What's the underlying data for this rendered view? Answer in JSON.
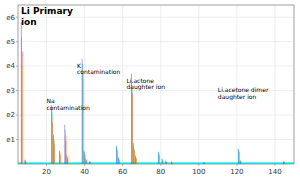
{
  "chart_data": {
    "type": "bar",
    "title": "Li Primary\nion",
    "x": [
      7,
      9,
      23,
      24,
      27,
      30,
      31,
      39,
      40,
      41,
      43,
      57,
      58,
      65,
      66,
      67,
      79,
      81,
      83,
      86,
      103,
      121,
      122,
      145
    ],
    "series": [
      {
        "color": "#0000cc",
        "values": [
          580000,
          18000,
          240000,
          120000,
          55000,
          160000,
          38000,
          430000,
          55000,
          22000,
          12000,
          75000,
          28000,
          370000,
          85000,
          35000,
          50000,
          22000,
          13000,
          10000,
          7500,
          63000,
          16000,
          11000
        ]
      },
      {
        "color": "#0088ff",
        "values": [
          520000,
          14000,
          230000,
          110000,
          48000,
          140000,
          32000,
          410000,
          50000,
          18000,
          10000,
          70000,
          23000,
          340000,
          75000,
          30000,
          46000,
          18000,
          10000,
          8000,
          6500,
          58000,
          14000,
          9000
        ]
      },
      {
        "color": "#00ddaa",
        "values": [
          480000,
          16000,
          210000,
          95000,
          42000,
          120000,
          28000,
          390000,
          46000,
          15000,
          8000,
          65000,
          18000,
          310000,
          65000,
          26000,
          42000,
          16000,
          9000,
          7500,
          5500,
          52000,
          12000,
          8000
        ]
      },
      {
        "color": "#ff0000",
        "values": [
          460000,
          12000,
          170000,
          80000,
          38000,
          95000,
          22000,
          370000,
          40000,
          13000,
          7000,
          55000,
          16000,
          290000,
          55000,
          22000,
          36000,
          13000,
          8000,
          7000,
          4500,
          48000,
          10000,
          7000
        ]
      },
      {
        "color": "#ffaa00",
        "values": [
          400000,
          9000,
          190000,
          100000,
          50000,
          115000,
          32000,
          340000,
          36000,
          20000,
          9000,
          60000,
          20000,
          270000,
          60000,
          25000,
          44000,
          18000,
          10000,
          8500,
          6000,
          55000,
          13000,
          9000
        ]
      }
    ],
    "xlim": [
      5,
      150
    ],
    "ylim": [
      0,
      650000
    ],
    "xticks": [
      20,
      40,
      60,
      80,
      100,
      120,
      140
    ],
    "yticks": [
      {
        "value": 100000,
        "label": "e1"
      },
      {
        "value": 200000,
        "label": "e2"
      },
      {
        "value": 300000,
        "label": "e3"
      },
      {
        "value": 400000,
        "label": "e4"
      },
      {
        "value": 500000,
        "label": "e5"
      },
      {
        "value": 600000,
        "label": "e6"
      }
    ],
    "grid": true,
    "baseline": 7000,
    "baseline_color": "#00ffff",
    "annotations": [
      {
        "text": "Na\ncontamination",
        "x": 20,
        "y": 215000
      },
      {
        "text": "K\ncontamination",
        "x": 36,
        "y": 360000
      },
      {
        "text": "Li.actone\ndaughter ion",
        "x": 62,
        "y": 300000
      },
      {
        "text": "Li.acetone dimer\ndaughter ion",
        "x": 110,
        "y": 260000
      }
    ]
  }
}
